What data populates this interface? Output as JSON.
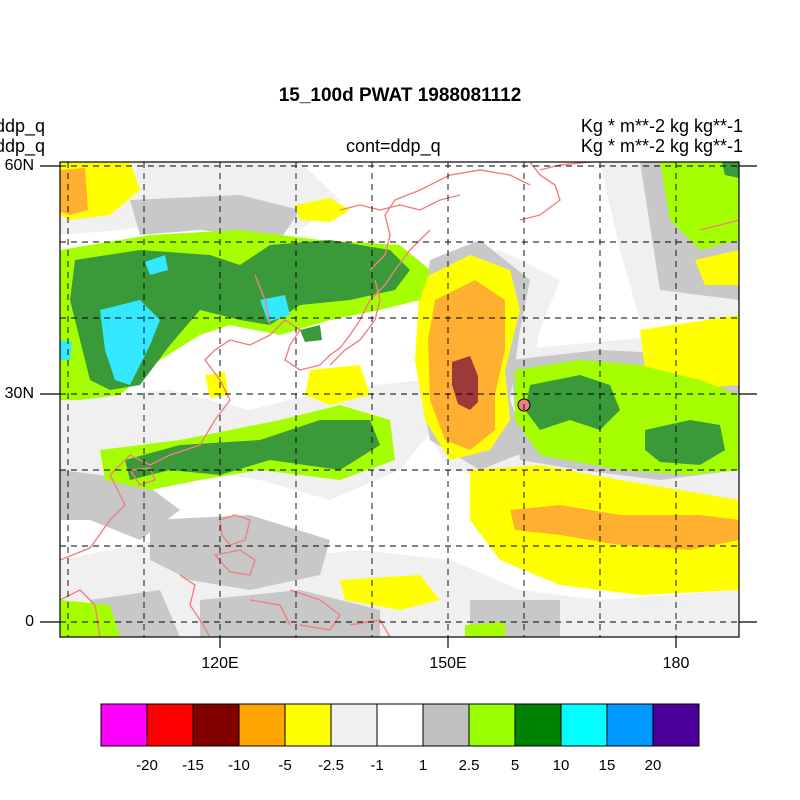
{
  "title": "15_100d PWAT  1988081112",
  "left_labels": [
    "ddp_q",
    "ddp_q"
  ],
  "center_label": "cont=ddp_q",
  "right_labels": [
    "Kg  * m**-2 kg kg**-1",
    "Kg  * m**-2 kg kg**-1"
  ],
  "lat_labels": [
    "60N",
    "30N",
    "0"
  ],
  "lon_labels": [
    "120E",
    "150E",
    "180"
  ],
  "colorbar": {
    "colors": [
      "#ff00ff",
      "#ff0000",
      "#800000",
      "#ffa500",
      "#ffff00",
      "#f0f0f0",
      "#ffffff",
      "#c0c0c0",
      "#99ff00",
      "#008000",
      "#00ffff",
      "#0099ff",
      "#4b0099"
    ],
    "labels": [
      "-20",
      "-15",
      "-10",
      "-5",
      "-2.5",
      "-1",
      "1",
      "2.5",
      "5",
      "10",
      "15",
      "20"
    ]
  },
  "colors": {
    "coastline": "#f08080",
    "grid": "#000000",
    "marker": "#f08080"
  }
}
